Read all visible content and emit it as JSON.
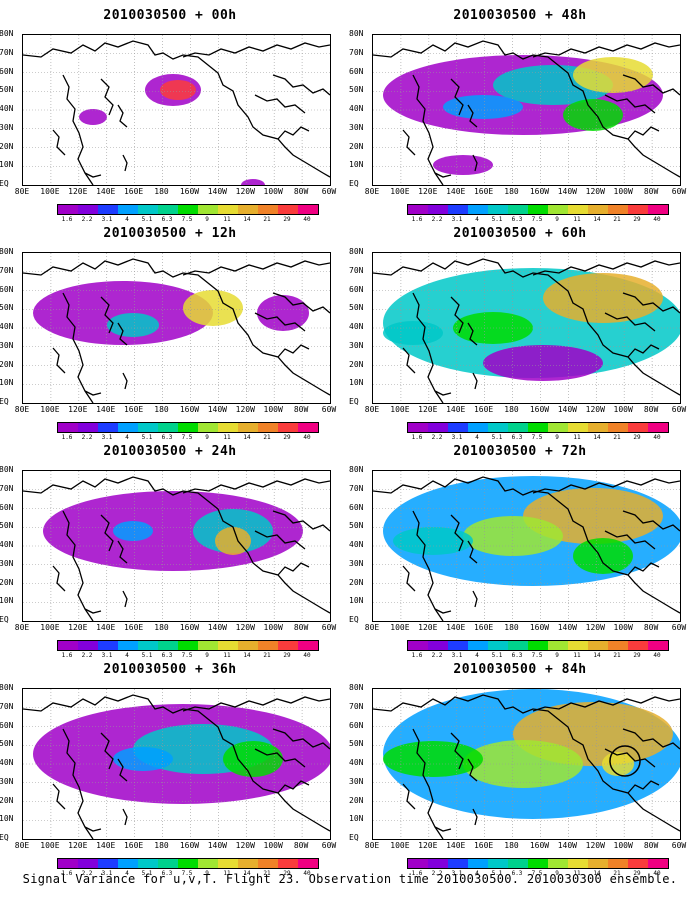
{
  "panels": [
    {
      "title": "2010030500 + 00h"
    },
    {
      "title": "2010030500 + 48h"
    },
    {
      "title": "2010030500 + 12h"
    },
    {
      "title": "2010030500 + 60h"
    },
    {
      "title": "2010030500 + 24h"
    },
    {
      "title": "2010030500 + 72h"
    },
    {
      "title": "2010030500 + 36h"
    },
    {
      "title": "2010030500 + 84h"
    }
  ],
  "latitude_labels": [
    "80N",
    "70N",
    "60N",
    "50N",
    "40N",
    "30N",
    "20N",
    "10N",
    "EQ"
  ],
  "longitude_labels": [
    "80E",
    "100E",
    "120E",
    "140E",
    "160E",
    "180",
    "160W",
    "140W",
    "120W",
    "100W",
    "80W",
    "60W"
  ],
  "colorbar": {
    "levels": [
      "1.6",
      "2.2",
      "3.1",
      "4",
      "5.1",
      "6.3",
      "7.5",
      "9",
      "11",
      "14",
      "21",
      "29",
      "40"
    ],
    "colors": [
      "#a000c8",
      "#8200dc",
      "#1e3cff",
      "#00a0ff",
      "#00c8c8",
      "#00d28c",
      "#00dc00",
      "#a0e632",
      "#e6dc32",
      "#e6af2d",
      "#f08228",
      "#fa3c3c",
      "#f00082"
    ]
  },
  "footer": "Signal Variance for u,v,T. Flight 23. Observation time 2010030500. 2010030300 ensemble."
}
